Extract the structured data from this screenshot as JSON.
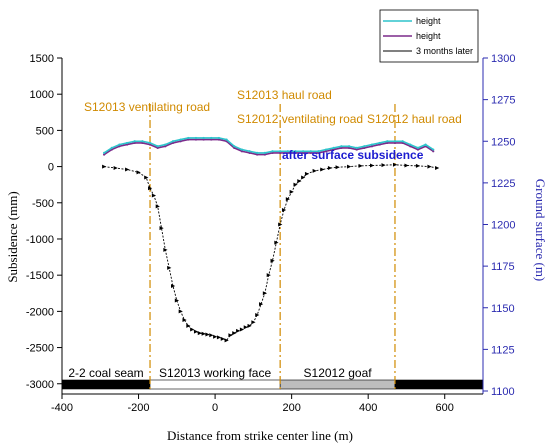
{
  "chart_data": {
    "type": "line",
    "xlabel": "Distance from strike center line (m)",
    "ylabel": "Subsidence (mm)",
    "y2label": "Ground surface (m)",
    "xlim": [
      -400,
      700
    ],
    "ylim": [
      -3100,
      1500
    ],
    "y2lim": [
      1100,
      1300
    ],
    "xticks": [
      "-400",
      "-200",
      "0",
      "200",
      "400",
      "600"
    ],
    "yticks": [
      "1500",
      "1000",
      "500",
      "0",
      "-500",
      "-1000",
      "-1500",
      "-2000",
      "-2500",
      "-3000"
    ],
    "y2ticks": [
      "1300",
      "1275",
      "1250",
      "1225",
      "1200",
      "1175",
      "1150",
      "1125",
      "1100"
    ],
    "legend": {
      "position": "top-right",
      "entries": [
        {
          "label": "height",
          "color": "#2ec4cc"
        },
        {
          "label": "height",
          "color": "#7b2a8a"
        },
        {
          "label": "3 months later",
          "color": "#000000"
        }
      ]
    },
    "series": [
      {
        "name": "3 months later",
        "axis": "left",
        "color": "#000000",
        "x": [
          -290,
          -260,
          -230,
          -200,
          -180,
          -170,
          -160,
          -150,
          -140,
          -130,
          -120,
          -110,
          -100,
          -90,
          -80,
          -70,
          -60,
          -50,
          -40,
          -30,
          -20,
          -10,
          0,
          10,
          20,
          30,
          40,
          50,
          60,
          70,
          80,
          90,
          100,
          110,
          120,
          130,
          140,
          150,
          160,
          170,
          180,
          190,
          200,
          210,
          220,
          230,
          240,
          260,
          280,
          300,
          320,
          350,
          380,
          410,
          440,
          470,
          500,
          530,
          560,
          580
        ],
        "values": [
          0,
          -20,
          -40,
          -80,
          -150,
          -300,
          -400,
          -550,
          -850,
          -1150,
          -1400,
          -1650,
          -1850,
          -2000,
          -2120,
          -2200,
          -2250,
          -2280,
          -2300,
          -2310,
          -2320,
          -2330,
          -2350,
          -2360,
          -2380,
          -2400,
          -2330,
          -2300,
          -2270,
          -2250,
          -2220,
          -2200,
          -2150,
          -2050,
          -1900,
          -1750,
          -1500,
          -1300,
          -1050,
          -800,
          -600,
          -450,
          -350,
          -250,
          -200,
          -150,
          -100,
          -60,
          -40,
          -20,
          -10,
          0,
          10,
          15,
          20,
          25,
          15,
          10,
          0,
          -20
        ]
      },
      {
        "name": "height",
        "axis": "right",
        "color": "#7b2a8a",
        "x": [
          -290,
          -270,
          -250,
          -230,
          -210,
          -190,
          -170,
          -150,
          -130,
          -110,
          -90,
          -70,
          -50,
          -30,
          -10,
          10,
          30,
          50,
          70,
          90,
          110,
          130,
          150,
          170,
          190,
          210,
          230,
          250,
          270,
          290,
          310,
          330,
          350,
          370,
          390,
          410,
          430,
          450,
          470,
          490,
          510,
          530,
          550,
          570
        ],
        "values": [
          1242,
          1245,
          1247,
          1248,
          1249,
          1249,
          1248,
          1246,
          1247,
          1249,
          1250,
          1251,
          1251,
          1251,
          1251,
          1251,
          1250,
          1246,
          1244,
          1243,
          1242,
          1242,
          1243,
          1243,
          1243,
          1243,
          1243,
          1243,
          1243,
          1244,
          1245,
          1246,
          1246,
          1245,
          1246,
          1247,
          1248,
          1249,
          1249,
          1249,
          1247,
          1245,
          1247,
          1244
        ]
      },
      {
        "name": "height",
        "axis": "right",
        "color": "#2ec4cc",
        "x": [
          -290,
          -270,
          -250,
          -230,
          -210,
          -190,
          -170,
          -150,
          -130,
          -110,
          -90,
          -70,
          -50,
          -30,
          -10,
          10,
          30,
          50,
          70,
          90,
          110,
          130,
          150,
          170,
          190,
          210,
          230,
          250,
          270,
          290,
          310,
          330,
          350,
          370,
          390,
          410,
          430,
          450,
          470,
          490,
          510,
          530,
          550,
          570
        ],
        "values": [
          1243,
          1246,
          1248,
          1249,
          1250,
          1250,
          1249,
          1247,
          1248,
          1250,
          1251,
          1252,
          1252,
          1252,
          1252,
          1252,
          1251,
          1247,
          1245,
          1244,
          1243,
          1243,
          1244,
          1244,
          1244,
          1244,
          1244,
          1244,
          1244,
          1245,
          1246,
          1247,
          1247,
          1246,
          1247,
          1248,
          1249,
          1250,
          1250,
          1250,
          1248,
          1246,
          1248,
          1245
        ]
      }
    ],
    "vlines": [
      -170,
      170,
      470
    ],
    "annotations": [
      {
        "text": "S12013 ventilating road",
        "color": "#d08a00"
      },
      {
        "text": "S12013 haul road",
        "color": "#d08a00"
      },
      {
        "text": "S12012 ventilating road",
        "color": "#d08a00"
      },
      {
        "text": "S12012 haul road",
        "color": "#d08a00"
      },
      {
        "text": "after surface subsidence",
        "color": "#1c1cd0"
      }
    ],
    "bar_segments": [
      {
        "label": "2-2 coal seam",
        "color": "#000000",
        "text_color": "#ffffff",
        "x_from": -400,
        "x_to": -170
      },
      {
        "label": "S12013 working face",
        "color": "#ffffff",
        "text_color": "#000000",
        "x_from": -170,
        "x_to": 170
      },
      {
        "label": "S12012 goaf",
        "color": "#bdbdbd",
        "text_color": "#000000",
        "x_from": 170,
        "x_to": 470
      },
      {
        "label": "",
        "color": "#000000",
        "text_color": "#ffffff",
        "x_from": 470,
        "x_to": 700
      }
    ]
  }
}
